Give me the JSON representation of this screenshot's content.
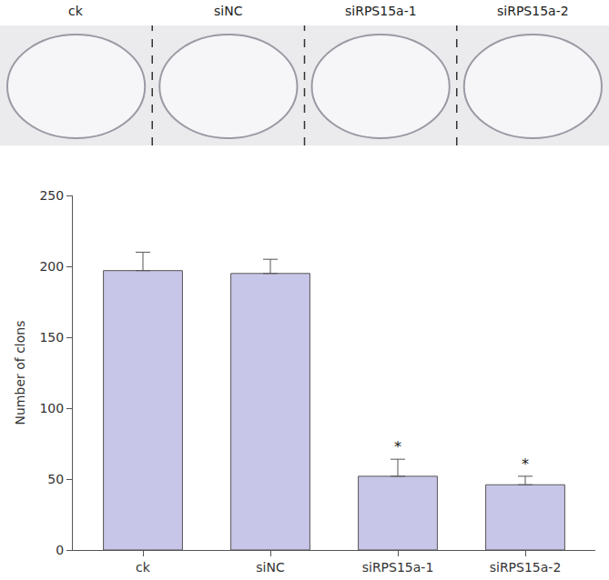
{
  "chart_data": {
    "type": "bar",
    "categories": [
      "ck",
      "siNC",
      "siRPS15a-1",
      "siRPS15a-2"
    ],
    "values": [
      197,
      195,
      52,
      46
    ],
    "errors": [
      13,
      10,
      12,
      6
    ],
    "color": "#c8c6e8",
    "y_label": "Number of clons",
    "ylim": [
      0,
      250
    ],
    "yticks": [
      0,
      50,
      100,
      150,
      200,
      250
    ],
    "grid": false,
    "annotations": [
      {
        "category": "siRPS15a-1",
        "text": "*"
      },
      {
        "category": "siRPS15a-2",
        "text": "*"
      }
    ]
  }
}
